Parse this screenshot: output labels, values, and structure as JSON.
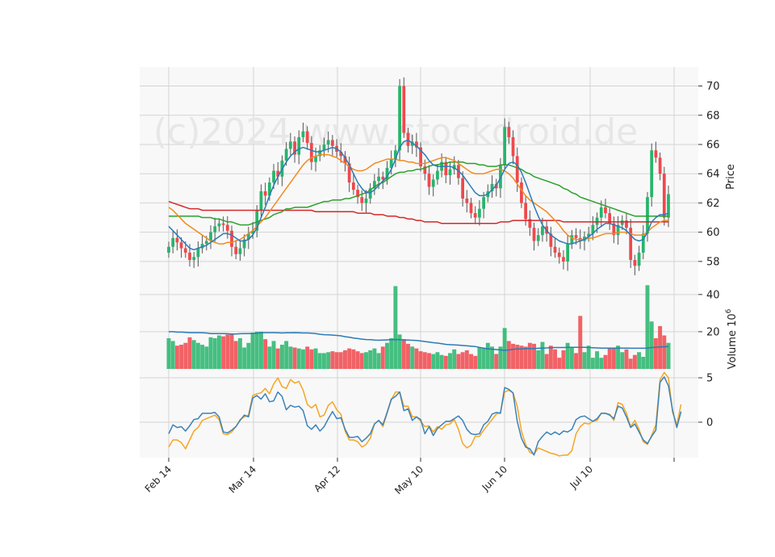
{
  "watermark": "(c)2024 www.stockdroid.de",
  "colors": {
    "up": "#26b56b",
    "down": "#f0484c",
    "panel_bg": "#f8f8f8",
    "grid": "#d4d4d4",
    "ma_short": "#2b7bb6",
    "ma_mid": "#f28a1e",
    "ma_long": "#2ca02c",
    "ma_longest": "#d62728",
    "vol_ma": "#2b7bb6",
    "osc_a": "#3c82b9",
    "osc_b": "#f5a623"
  },
  "chart_data": {
    "type": "candlestick",
    "date_ticks": [
      "Feb 14",
      "Mar 14",
      "Apr 12",
      "May 10",
      "Jun 10",
      "Jul 10"
    ],
    "price_panel": {
      "ylabel": "Price",
      "ylim": [
        56.5,
        71.3
      ],
      "yticks": [
        58,
        60,
        62,
        64,
        66,
        68,
        70
      ]
    },
    "volume_panel": {
      "ylabel": "Volume",
      "ylabel_exponent": "6",
      "ylim": [
        0,
        46
      ],
      "yticks": [
        20,
        40
      ]
    },
    "oscillator_panel": {
      "ylim": [
        -4,
        6
      ],
      "yticks": [
        0,
        5
      ]
    },
    "close": [
      59.0,
      59.6,
      59.3,
      58.9,
      58.6,
      58.1,
      58.3,
      58.9,
      59.2,
      59.4,
      60.0,
      60.4,
      60.6,
      60.5,
      60.1,
      59.0,
      58.5,
      58.9,
      59.5,
      59.9,
      60.1,
      61.5,
      62.8,
      62.5,
      63.4,
      64.2,
      63.8,
      64.9,
      65.7,
      66.2,
      65.3,
      66.5,
      66.9,
      66.1,
      64.8,
      65.2,
      65.6,
      66.0,
      66.3,
      65.9,
      65.5,
      65.2,
      64.7,
      63.4,
      62.9,
      62.4,
      62.0,
      62.3,
      63.0,
      63.5,
      63.8,
      63.6,
      64.4,
      65.0,
      65.6,
      70.0,
      66.8,
      65.9,
      66.2,
      65.8,
      64.5,
      64.0,
      63.1,
      63.6,
      64.2,
      64.8,
      63.9,
      64.3,
      64.6,
      63.7,
      62.3,
      62.0,
      61.3,
      61.0,
      61.6,
      62.4,
      62.8,
      63.3,
      63.0,
      64.6,
      67.2,
      66.5,
      65.2,
      63.4,
      62.0,
      60.9,
      60.3,
      59.4,
      59.8,
      60.4,
      59.9,
      59.0,
      58.6,
      58.3,
      58.0,
      59.2,
      59.8,
      59.6,
      59.4,
      59.7,
      59.9,
      60.5,
      61.0,
      61.7,
      61.3,
      60.6,
      59.8,
      60.5,
      60.8,
      60.3,
      58.1,
      57.7,
      58.6,
      59.9,
      62.4,
      65.6,
      65.1,
      64.0,
      61.0,
      62.6
    ],
    "volume": [
      16.5,
      15.0,
      12.5,
      13.0,
      14.0,
      17.0,
      15.5,
      14.0,
      13.0,
      12.0,
      17.0,
      16.5,
      18.0,
      17.5,
      18.5,
      19.0,
      15.0,
      16.5,
      11.5,
      14.0,
      19.5,
      20.0,
      20.0,
      16.0,
      12.0,
      15.0,
      11.0,
      13.0,
      15.0,
      12.0,
      11.5,
      11.0,
      10.5,
      12.0,
      10.5,
      11.0,
      8.5,
      8.5,
      9.0,
      9.5,
      9.0,
      9.0,
      10.0,
      11.0,
      10.5,
      9.5,
      8.5,
      9.0,
      10.0,
      11.0,
      8.5,
      12.0,
      14.0,
      16.5,
      44.5,
      18.5,
      16.0,
      13.5,
      12.0,
      11.0,
      9.5,
      9.0,
      8.5,
      8.0,
      9.0,
      7.5,
      7.0,
      8.5,
      10.5,
      8.0,
      9.0,
      10.0,
      8.0,
      7.0,
      11.5,
      11.0,
      14.0,
      12.0,
      8.0,
      12.0,
      22.0,
      15.0,
      13.5,
      13.0,
      12.5,
      12.0,
      14.0,
      13.5,
      10.0,
      14.5,
      8.0,
      12.5,
      10.5,
      6.0,
      10.0,
      14.0,
      11.5,
      8.5,
      28.5,
      9.0,
      12.5,
      6.0,
      9.5,
      6.0,
      7.5,
      11.0,
      11.0,
      12.5,
      9.0,
      10.5,
      5.5,
      7.5,
      9.0,
      6.5,
      45.0,
      25.5,
      16.5,
      23.0,
      18.0,
      14.0
    ],
    "sma_short": [
      60.4,
      60.1,
      59.8,
      59.5,
      59.2,
      58.9,
      58.8,
      58.9,
      59.0,
      59.1,
      59.3,
      59.5,
      59.7,
      59.9,
      59.9,
      59.8,
      59.6,
      59.4,
      59.4,
      59.5,
      59.8,
      60.3,
      61.0,
      61.7,
      62.5,
      63.2,
      63.8,
      64.3,
      64.8,
      65.2,
      65.5,
      65.7,
      65.8,
      65.7,
      65.6,
      65.5,
      65.5,
      65.6,
      65.7,
      65.8,
      65.7,
      65.5,
      65.1,
      64.6,
      64.0,
      63.4,
      63.0,
      62.7,
      62.7,
      62.9,
      63.2,
      63.5,
      63.8,
      64.3,
      65.0,
      65.8,
      66.2,
      66.3,
      66.1,
      65.9,
      65.6,
      65.3,
      64.9,
      64.6,
      64.5,
      64.5,
      64.5,
      64.5,
      64.4,
      64.2,
      63.9,
      63.5,
      63.1,
      62.7,
      62.5,
      62.5,
      62.6,
      62.9,
      63.2,
      63.7,
      64.3,
      64.7,
      64.8,
      64.6,
      64.1,
      63.4,
      62.6,
      61.8,
      61.1,
      60.5,
      60.1,
      59.8,
      59.6,
      59.4,
      59.3,
      59.2,
      59.2,
      59.3,
      59.4,
      59.5,
      59.7,
      59.9,
      60.2,
      60.4,
      60.6,
      60.6,
      60.5,
      60.4,
      60.3,
      60.1,
      59.8,
      59.5,
      59.4,
      59.5,
      60.0,
      60.7,
      61.0,
      61.2,
      61.2,
      61.3
    ],
    "sma_mid": [
      61.7,
      61.5,
      61.2,
      60.9,
      60.6,
      60.4,
      60.2,
      60.0,
      59.8,
      59.6,
      59.4,
      59.3,
      59.2,
      59.2,
      59.3,
      59.3,
      59.4,
      59.5,
      59.7,
      59.9,
      60.1,
      60.4,
      60.7,
      61.0,
      61.4,
      61.8,
      62.2,
      62.6,
      63.0,
      63.4,
      63.8,
      64.2,
      64.6,
      64.9,
      65.1,
      65.2,
      65.3,
      65.3,
      65.3,
      65.2,
      65.1,
      64.9,
      64.7,
      64.5,
      64.3,
      64.2,
      64.2,
      64.3,
      64.5,
      64.7,
      64.8,
      64.9,
      65.0,
      65.0,
      65.0,
      64.9,
      64.9,
      64.8,
      64.8,
      64.7,
      64.7,
      64.7,
      64.8,
      64.9,
      65.0,
      65.1,
      65.1,
      65.0,
      64.9,
      64.7,
      64.5,
      64.3,
      64.1,
      64.0,
      64.0,
      64.0,
      64.1,
      64.2,
      64.3,
      64.3,
      64.2,
      64.0,
      63.7,
      63.3,
      62.9,
      62.5,
      62.2,
      62.0,
      61.8,
      61.6,
      61.4,
      61.1,
      60.8,
      60.5,
      60.1,
      59.8,
      59.6,
      59.5,
      59.5,
      59.5,
      59.6,
      59.6,
      59.7,
      59.8,
      59.9,
      59.9,
      59.9,
      60.0,
      60.0,
      60.0,
      59.9,
      59.8,
      59.8,
      59.8,
      60.0,
      60.3,
      60.5,
      60.7,
      60.8,
      60.8
    ],
    "sma_long": [
      61.1,
      61.1,
      61.1,
      61.1,
      61.1,
      61.1,
      61.1,
      61.1,
      61.0,
      61.0,
      61.0,
      60.9,
      60.9,
      60.8,
      60.7,
      60.7,
      60.6,
      60.5,
      60.5,
      60.5,
      60.6,
      60.7,
      60.8,
      60.9,
      61.0,
      61.2,
      61.3,
      61.4,
      61.6,
      61.6,
      61.7,
      61.7,
      61.7,
      61.7,
      61.8,
      61.9,
      62.0,
      62.1,
      62.1,
      62.2,
      62.2,
      62.2,
      62.3,
      62.3,
      62.4,
      62.5,
      62.6,
      62.7,
      62.9,
      63.1,
      63.3,
      63.4,
      63.6,
      63.8,
      64.0,
      64.1,
      64.1,
      64.2,
      64.2,
      64.3,
      64.3,
      64.4,
      64.5,
      64.6,
      64.6,
      64.7,
      64.7,
      64.8,
      64.8,
      64.8,
      64.8,
      64.7,
      64.7,
      64.7,
      64.6,
      64.6,
      64.5,
      64.5,
      64.5,
      64.6,
      64.6,
      64.6,
      64.5,
      64.4,
      64.3,
      64.1,
      64.0,
      63.8,
      63.7,
      63.6,
      63.5,
      63.4,
      63.3,
      63.2,
      63.0,
      62.9,
      62.7,
      62.6,
      62.4,
      62.3,
      62.2,
      62.1,
      62.0,
      61.9,
      61.8,
      61.7,
      61.6,
      61.5,
      61.4,
      61.3,
      61.2,
      61.1,
      61.1,
      61.1,
      61.1,
      61.1,
      61.1,
      61.1,
      61.1,
      61.1
    ],
    "sma_longest": [
      62.1,
      62.0,
      61.9,
      61.8,
      61.7,
      61.6,
      61.6,
      61.6,
      61.5,
      61.5,
      61.5,
      61.5,
      61.5,
      61.5,
      61.5,
      61.5,
      61.5,
      61.5,
      61.5,
      61.5,
      61.5,
      61.5,
      61.5,
      61.5,
      61.5,
      61.5,
      61.5,
      61.5,
      61.5,
      61.5,
      61.5,
      61.5,
      61.5,
      61.5,
      61.5,
      61.4,
      61.4,
      61.4,
      61.4,
      61.4,
      61.4,
      61.4,
      61.4,
      61.4,
      61.4,
      61.3,
      61.3,
      61.3,
      61.3,
      61.2,
      61.2,
      61.2,
      61.1,
      61.1,
      61.1,
      61.0,
      61.0,
      60.9,
      60.9,
      60.8,
      60.8,
      60.7,
      60.7,
      60.7,
      60.7,
      60.6,
      60.6,
      60.6,
      60.6,
      60.6,
      60.6,
      60.6,
      60.6,
      60.6,
      60.6,
      60.6,
      60.6,
      60.6,
      60.6,
      60.7,
      60.7,
      60.7,
      60.8,
      60.8,
      60.8,
      60.8,
      60.8,
      60.8,
      60.8,
      60.8,
      60.8,
      60.8,
      60.8,
      60.8,
      60.7,
      60.7,
      60.7,
      60.7,
      60.7,
      60.7,
      60.7,
      60.7,
      60.7,
      60.7,
      60.7,
      60.7,
      60.7,
      60.7,
      60.7,
      60.7,
      60.7,
      60.7,
      60.7,
      60.7,
      60.7,
      60.7,
      60.7,
      60.7,
      60.7,
      60.7
    ],
    "volume_ma": [
      20.0,
      20.0,
      19.8,
      19.8,
      19.6,
      19.5,
      19.5,
      19.5,
      19.4,
      19.3,
      19.0,
      19.0,
      19.0,
      19.0,
      18.9,
      18.8,
      18.8,
      18.9,
      19.0,
      19.0,
      19.1,
      19.2,
      19.4,
      19.5,
      19.5,
      19.5,
      19.4,
      19.3,
      19.4,
      19.4,
      19.5,
      19.4,
      19.3,
      19.3,
      19.2,
      19.0,
      18.6,
      18.4,
      18.3,
      18.2,
      18.0,
      17.8,
      17.3,
      17.0,
      16.6,
      16.3,
      16.0,
      15.8,
      15.7,
      15.5,
      15.4,
      15.5,
      15.6,
      15.7,
      15.8,
      15.7,
      15.6,
      15.5,
      15.4,
      15.3,
      15.0,
      14.7,
      14.4,
      14.1,
      13.9,
      13.6,
      13.2,
      13.0,
      12.9,
      12.8,
      12.6,
      12.4,
      12.2,
      12.0,
      11.6,
      11.2,
      10.8,
      10.6,
      10.4,
      10.2,
      10.0,
      10.2,
      10.5,
      10.7,
      10.8,
      10.9,
      11.0,
      11.0,
      11.1,
      11.2,
      11.3,
      11.4,
      11.5,
      11.5,
      11.5,
      11.6,
      11.6,
      11.6,
      11.6,
      11.6,
      11.5,
      11.4,
      11.3,
      11.2,
      11.2,
      11.2,
      11.2,
      11.2,
      11.2,
      11.2,
      11.1,
      11.1,
      11.1,
      11.1,
      11.2,
      11.5,
      11.6,
      11.8,
      11.9,
      12.0
    ],
    "osc_a": [
      -1.3,
      -0.3,
      -0.6,
      -0.5,
      -1.0,
      -0.4,
      0.3,
      0.4,
      1.0,
      1.0,
      1.0,
      1.1,
      0.6,
      -1.1,
      -1.2,
      -0.9,
      -0.5,
      0.2,
      0.8,
      0.6,
      2.7,
      3.0,
      2.6,
      3.2,
      2.3,
      2.4,
      3.4,
      2.9,
      1.4,
      1.9,
      1.7,
      1.8,
      1.3,
      -0.4,
      -0.8,
      -0.3,
      -1.0,
      -0.5,
      0.4,
      1.2,
      0.4,
      0.5,
      -0.8,
      -1.7,
      -1.7,
      -1.6,
      -2.2,
      -1.8,
      -1.3,
      -0.2,
      0.2,
      -0.3,
      1.1,
      2.6,
      2.9,
      3.4,
      1.3,
      1.5,
      0.2,
      0.6,
      0.3,
      -1.3,
      -0.5,
      -1.5,
      -0.7,
      -0.3,
      0.1,
      0.1,
      0.4,
      0.7,
      0.2,
      -0.8,
      -1.3,
      -1.4,
      -1.3,
      -0.3,
      0.1,
      0.9,
      1.1,
      1.0,
      3.9,
      3.7,
      3.3,
      0.1,
      -1.8,
      -2.8,
      -3.0,
      -3.7,
      -2.2,
      -1.6,
      -1.1,
      -1.4,
      -1.1,
      -1.4,
      -1.0,
      -1.1,
      -0.8,
      0.3,
      0.6,
      0.7,
      0.4,
      0.1,
      0.4,
      1.0,
      1.0,
      0.8,
      0.4,
      1.8,
      1.6,
      0.6,
      -0.6,
      -0.2,
      -1.1,
      -2.0,
      -2.4,
      -1.6,
      -0.9,
      4.5,
      5.1,
      4.1,
      1.3,
      -0.6,
      1.2
    ],
    "osc_b": [
      -2.8,
      -2.0,
      -2.0,
      -2.3,
      -3.0,
      -2.0,
      -1.0,
      -0.6,
      0.2,
      0.4,
      0.6,
      0.8,
      0.3,
      -1.3,
      -1.4,
      -1.1,
      -0.5,
      0.3,
      0.6,
      0.8,
      3.0,
      3.2,
      3.3,
      3.8,
      3.2,
      4.3,
      5.0,
      4.0,
      3.8,
      4.8,
      4.4,
      4.6,
      3.6,
      2.0,
      1.6,
      2.0,
      0.6,
      0.8,
      1.9,
      2.3,
      1.4,
      0.9,
      -1.0,
      -2.0,
      -2.0,
      -2.2,
      -2.8,
      -2.5,
      -1.8,
      -0.2,
      0.2,
      -0.5,
      1.0,
      2.5,
      3.4,
      3.4,
      1.8,
      1.8,
      0.6,
      0.6,
      0.1,
      -0.5,
      -0.4,
      -1.1,
      -0.5,
      -0.8,
      -0.3,
      -0.2,
      0.3,
      -0.8,
      -2.4,
      -2.9,
      -2.6,
      -1.6,
      -1.6,
      -0.9,
      -0.3,
      0.3,
      0.9,
      1.1,
      3.4,
      3.6,
      3.3,
      1.8,
      -1.0,
      -2.5,
      -3.4,
      -3.6,
      -2.9,
      -3.1,
      -3.3,
      -3.5,
      -3.6,
      -3.8,
      -3.7,
      -3.7,
      -3.2,
      -1.3,
      -0.5,
      -0.1,
      -0.2,
      0.1,
      0.2,
      1.0,
      1.0,
      0.9,
      0.2,
      2.2,
      2.0,
      1.0,
      -0.5,
      0.2,
      -0.8,
      -2.2,
      -2.5,
      -1.5,
      -0.3,
      4.8,
      5.6,
      5.0,
      1.1,
      -0.3,
      2.0
    ]
  }
}
